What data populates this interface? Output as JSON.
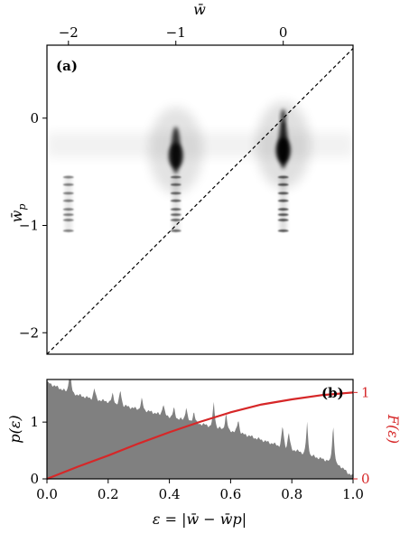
{
  "chart_data": [
    {
      "type": "heatmap",
      "panel_label": "(a)",
      "top_xlabel": "w̄",
      "ylabel": "w̄",
      "ylabel_sub": "p",
      "xlim": [
        -2.2,
        0.65
      ],
      "ylim": [
        -2.2,
        0.68
      ],
      "xticks": [
        -2,
        -1,
        0
      ],
      "yticks": [
        0,
        -1,
        -2
      ],
      "tick_labels_x": [
        "−2",
        "−1",
        "0"
      ],
      "tick_labels_y": [
        "0",
        "−1",
        "−2"
      ],
      "diagonal": "y = x (dashed)",
      "clusters": [
        {
          "w": -2,
          "wp_levels": [
            -0.55,
            -0.62,
            -0.7,
            -0.77,
            -0.85,
            -0.9,
            -0.95,
            -1.05
          ],
          "intensity": 0.75
        },
        {
          "w": -1,
          "wp_center": -0.3,
          "wp_levels": [
            -0.55,
            -0.62,
            -0.7,
            -0.77,
            -0.85,
            -0.9,
            -0.95,
            -1.05
          ],
          "intensity": 0.9
        },
        {
          "w": 0,
          "wp_center": -0.25,
          "wp_levels": [
            -0.55,
            -0.62,
            -0.7,
            -0.77,
            -0.85,
            -0.9,
            -0.95,
            -1.05
          ],
          "intensity": 1.0
        }
      ],
      "band_wp": -0.25
    },
    {
      "type": "area",
      "panel_label": "(b)",
      "xlabel": "ε = |w̄ − w̄p|",
      "ylabel_left": "p(ε)",
      "ylabel_right": "F(ε)",
      "xlim": [
        0.0,
        1.0
      ],
      "ylim_left": [
        0,
        1.75
      ],
      "ylim_right": [
        0,
        1.15
      ],
      "xticks": [
        0.0,
        0.2,
        0.4,
        0.6,
        0.8,
        1.0
      ],
      "tick_labels_x": [
        "0.0",
        "0.2",
        "0.4",
        "0.6",
        "0.8",
        "1.0"
      ],
      "yticks_left": [
        0,
        1
      ],
      "tick_labels_left": [
        "0",
        "1"
      ],
      "yticks_right": [
        0,
        1
      ],
      "tick_labels_right": [
        "0",
        "1"
      ],
      "density": {
        "x": [
          0.0,
          0.02,
          0.04,
          0.06,
          0.08,
          0.1,
          0.12,
          0.14,
          0.16,
          0.18,
          0.2,
          0.22,
          0.24,
          0.26,
          0.28,
          0.3,
          0.32,
          0.34,
          0.36,
          0.38,
          0.4,
          0.42,
          0.44,
          0.46,
          0.48,
          0.5,
          0.52,
          0.54,
          0.56,
          0.58,
          0.6,
          0.62,
          0.64,
          0.66,
          0.68,
          0.7,
          0.72,
          0.74,
          0.76,
          0.78,
          0.8,
          0.82,
          0.84,
          0.86,
          0.88,
          0.9,
          0.92,
          0.94,
          0.96,
          0.98,
          1.0
        ],
        "y": [
          1.7,
          1.65,
          1.6,
          1.55,
          1.52,
          1.48,
          1.45,
          1.42,
          1.4,
          1.38,
          1.36,
          1.33,
          1.3,
          1.28,
          1.25,
          1.23,
          1.21,
          1.18,
          1.15,
          1.12,
          1.1,
          1.07,
          1.05,
          1.02,
          1.0,
          0.97,
          0.95,
          0.92,
          0.9,
          0.87,
          0.85,
          0.82,
          0.79,
          0.76,
          0.72,
          0.69,
          0.65,
          0.62,
          0.58,
          0.55,
          0.52,
          0.49,
          0.45,
          0.42,
          0.38,
          0.35,
          0.32,
          0.28,
          0.22,
          0.12,
          0.05
        ]
      },
      "peaks": [
        {
          "x": 0.075,
          "h": 0.45
        },
        {
          "x": 0.155,
          "h": 0.2
        },
        {
          "x": 0.215,
          "h": 0.18
        },
        {
          "x": 0.24,
          "h": 0.28
        },
        {
          "x": 0.31,
          "h": 0.2
        },
        {
          "x": 0.38,
          "h": 0.22
        },
        {
          "x": 0.415,
          "h": 0.18
        },
        {
          "x": 0.455,
          "h": 0.25
        },
        {
          "x": 0.48,
          "h": 0.2
        },
        {
          "x": 0.545,
          "h": 0.45
        },
        {
          "x": 0.585,
          "h": 0.3
        },
        {
          "x": 0.625,
          "h": 0.25
        },
        {
          "x": 0.77,
          "h": 0.4
        },
        {
          "x": 0.79,
          "h": 0.3
        },
        {
          "x": 0.85,
          "h": 0.55
        },
        {
          "x": 0.935,
          "h": 0.7
        }
      ],
      "cdf": {
        "x": [
          0.0,
          0.1,
          0.2,
          0.3,
          0.4,
          0.5,
          0.6,
          0.7,
          0.8,
          0.9,
          1.0
        ],
        "y": [
          0.0,
          0.14,
          0.27,
          0.41,
          0.54,
          0.66,
          0.77,
          0.86,
          0.92,
          0.97,
          1.0
        ]
      },
      "colors": {
        "density": "#808080",
        "cdf": "#d62728"
      }
    }
  ]
}
